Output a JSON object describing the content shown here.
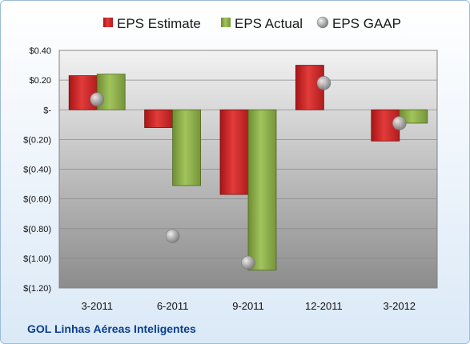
{
  "chart_data": {
    "type": "bar",
    "categories": [
      "3-2011",
      "6-2011",
      "9-2011",
      "12-2011",
      "3-2012"
    ],
    "series": [
      {
        "name": "EPS Estimate",
        "kind": "bar",
        "values": [
          0.23,
          -0.12,
          -0.57,
          0.3,
          -0.21
        ],
        "color": "#d42a2a"
      },
      {
        "name": "EPS Actual",
        "kind": "bar",
        "values": [
          0.24,
          -0.51,
          -1.08,
          null,
          -0.09
        ],
        "color": "#8fb24a"
      },
      {
        "name": "EPS GAAP",
        "kind": "marker",
        "values": [
          0.07,
          -0.85,
          -1.03,
          0.18,
          -0.09
        ],
        "color": "#b8b8b8"
      }
    ],
    "ylim": [
      -1.2,
      0.4
    ],
    "yticks": [
      0.4,
      0.2,
      0,
      -0.2,
      -0.4,
      -0.6,
      -0.8,
      -1.0,
      -1.2
    ],
    "ytick_labels": [
      "$0.40",
      "$0.20",
      "$-",
      "$(0.20)",
      "$(0.40)",
      "$(0.60)",
      "$(0.80)",
      "$(1.00)",
      "$(1.20)"
    ],
    "grid": true,
    "legend_position": "top",
    "xlabel": "",
    "ylabel": ""
  },
  "footer": {
    "title": "GOL Linhas Aéreas Inteligentes"
  },
  "colors": {
    "frame_border": "#9bbbd9",
    "footer_text": "#0a3f8f"
  }
}
